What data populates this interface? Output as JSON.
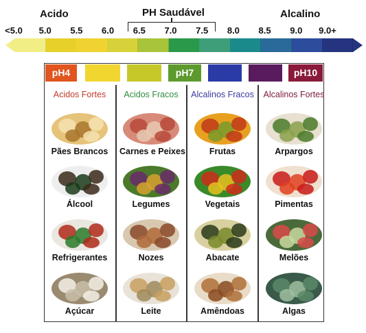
{
  "headers": {
    "acid": "Acido",
    "healthy": "PH Saudável",
    "alkaline": "Alcalino"
  },
  "scale_ticks": [
    "<5.0",
    "5.0",
    "5.5",
    "6.0",
    "6.5",
    "7.0",
    "7.5",
    "8.0",
    "8.5",
    "9.0",
    "9.0+"
  ],
  "scale_colors": [
    "#f2ee86",
    "#e8d02a",
    "#f0d230",
    "#d8d23a",
    "#a8c43a",
    "#2a9a4a",
    "#3f9e7a",
    "#1a8a8a",
    "#2a6a9a",
    "#2c4c9c",
    "#24347e"
  ],
  "chips": [
    {
      "label": "pH4",
      "color": "#e0561e"
    },
    {
      "label": "",
      "color": "#f2d630"
    },
    {
      "label": "",
      "color": "#c6c82a"
    },
    {
      "label": "pH7",
      "color": "#5c9a2e"
    },
    {
      "label": "",
      "color": "#2a3aa6"
    },
    {
      "label": "",
      "color": "#5a1a5e"
    },
    {
      "label": "pH10",
      "color": "#8a1a3a"
    }
  ],
  "columns": [
    {
      "title": "Acidos Fortes",
      "color": "#c0392b",
      "foods": [
        {
          "label": "Pães Brancos",
          "icon": "bread-icon"
        },
        {
          "label": "Álcool",
          "icon": "wine-bottles-icon"
        },
        {
          "label": "Refrigerantes",
          "icon": "soda-bottles-icon"
        },
        {
          "label": "Açúcar",
          "icon": "sugar-cubes-icon"
        }
      ]
    },
    {
      "title": "Acidos Fracos",
      "color": "#2e8b3a",
      "foods": [
        {
          "label": "Carnes e Peixes",
          "icon": "meat-fish-icon"
        },
        {
          "label": "Legumes",
          "icon": "vegetables-icon"
        },
        {
          "label": "Nozes",
          "icon": "nuts-icon"
        },
        {
          "label": "Leite",
          "icon": "milk-dairy-icon"
        }
      ]
    },
    {
      "title": "Alcalinos Fracos",
      "color": "#3a3aa0",
      "foods": [
        {
          "label": "Frutas",
          "icon": "fruits-icon"
        },
        {
          "label": "Vegetais",
          "icon": "greens-icon"
        },
        {
          "label": "Abacate",
          "icon": "avocado-icon"
        },
        {
          "label": "Amêndoas",
          "icon": "almonds-icon"
        }
      ]
    },
    {
      "title": "Alcalinos Fortes",
      "color": "#7a1a3a",
      "foods": [
        {
          "label": "Arpargos",
          "icon": "asparagus-icon"
        },
        {
          "label": "Pimentas",
          "icon": "peppers-icon"
        },
        {
          "label": "Melões",
          "icon": "melons-icon"
        },
        {
          "label": "Algas",
          "icon": "seaweed-icon"
        }
      ]
    }
  ]
}
